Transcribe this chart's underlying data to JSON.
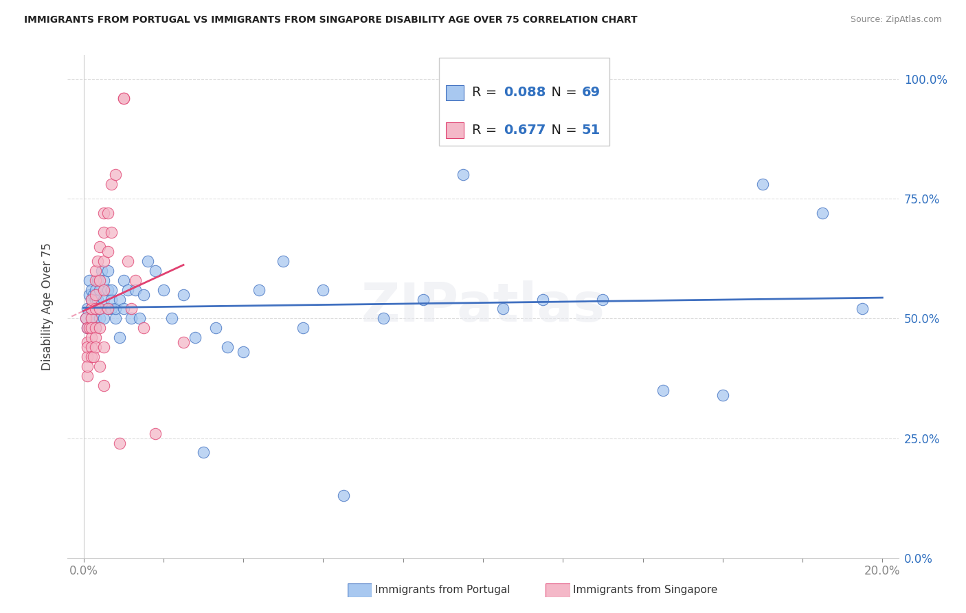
{
  "title": "IMMIGRANTS FROM PORTUGAL VS IMMIGRANTS FROM SINGAPORE DISABILITY AGE OVER 75 CORRELATION CHART",
  "source": "Source: ZipAtlas.com",
  "ylabel": "Disability Age Over 75",
  "blue_color": "#a8c8f0",
  "pink_color": "#f4b8c8",
  "blue_line_color": "#4070c0",
  "pink_line_color": "#e04070",
  "blue_r": "0.088",
  "blue_n": "69",
  "pink_r": "0.677",
  "pink_n": "51",
  "watermark": "ZIPatlas",
  "legend_label_blue": "Immigrants from Portugal",
  "legend_label_pink": "Immigrants from Singapore",
  "portugal_x": [
    0.0005,
    0.001,
    0.001,
    0.0015,
    0.0015,
    0.002,
    0.002,
    0.002,
    0.002,
    0.002,
    0.0025,
    0.0025,
    0.003,
    0.003,
    0.003,
    0.003,
    0.003,
    0.0035,
    0.0035,
    0.004,
    0.004,
    0.004,
    0.0045,
    0.005,
    0.005,
    0.005,
    0.006,
    0.006,
    0.006,
    0.007,
    0.007,
    0.007,
    0.008,
    0.008,
    0.009,
    0.009,
    0.01,
    0.01,
    0.011,
    0.012,
    0.013,
    0.014,
    0.015,
    0.016,
    0.018,
    0.02,
    0.022,
    0.025,
    0.028,
    0.03,
    0.033,
    0.036,
    0.04,
    0.044,
    0.05,
    0.055,
    0.06,
    0.065,
    0.075,
    0.085,
    0.095,
    0.105,
    0.115,
    0.13,
    0.145,
    0.16,
    0.17,
    0.185,
    0.195
  ],
  "portugal_y": [
    0.5,
    0.52,
    0.48,
    0.55,
    0.58,
    0.5,
    0.52,
    0.54,
    0.56,
    0.48,
    0.52,
    0.55,
    0.5,
    0.52,
    0.54,
    0.56,
    0.48,
    0.54,
    0.58,
    0.56,
    0.52,
    0.5,
    0.6,
    0.54,
    0.58,
    0.5,
    0.56,
    0.6,
    0.52,
    0.52,
    0.54,
    0.56,
    0.5,
    0.52,
    0.46,
    0.54,
    0.52,
    0.58,
    0.56,
    0.5,
    0.56,
    0.5,
    0.55,
    0.62,
    0.6,
    0.56,
    0.5,
    0.55,
    0.46,
    0.22,
    0.48,
    0.44,
    0.43,
    0.56,
    0.62,
    0.48,
    0.56,
    0.13,
    0.5,
    0.54,
    0.8,
    0.52,
    0.54,
    0.54,
    0.35,
    0.34,
    0.78,
    0.72,
    0.52
  ],
  "singapore_x": [
    0.0005,
    0.001,
    0.001,
    0.001,
    0.001,
    0.001,
    0.001,
    0.0015,
    0.002,
    0.002,
    0.002,
    0.002,
    0.002,
    0.002,
    0.002,
    0.002,
    0.0025,
    0.003,
    0.003,
    0.003,
    0.003,
    0.003,
    0.003,
    0.003,
    0.0035,
    0.004,
    0.004,
    0.004,
    0.004,
    0.004,
    0.005,
    0.005,
    0.005,
    0.005,
    0.005,
    0.005,
    0.006,
    0.006,
    0.006,
    0.007,
    0.007,
    0.008,
    0.009,
    0.01,
    0.01,
    0.011,
    0.012,
    0.013,
    0.015,
    0.018,
    0.025
  ],
  "singapore_y": [
    0.5,
    0.45,
    0.48,
    0.42,
    0.44,
    0.38,
    0.4,
    0.48,
    0.52,
    0.46,
    0.44,
    0.42,
    0.5,
    0.48,
    0.52,
    0.54,
    0.42,
    0.55,
    0.58,
    0.52,
    0.48,
    0.46,
    0.44,
    0.6,
    0.62,
    0.65,
    0.58,
    0.52,
    0.48,
    0.4,
    0.68,
    0.72,
    0.62,
    0.56,
    0.44,
    0.36,
    0.64,
    0.72,
    0.52,
    0.78,
    0.68,
    0.8,
    0.24,
    0.96,
    0.96,
    0.62,
    0.52,
    0.58,
    0.48,
    0.26,
    0.45
  ],
  "xmin": 0.0,
  "xmax": 0.2,
  "ymin": 0.0,
  "ymax": 1.05,
  "yticks": [
    0.0,
    0.25,
    0.5,
    0.75,
    1.0
  ],
  "yticklabels_right": [
    "0.0%",
    "25.0%",
    "50.0%",
    "75.0%",
    "100.0%"
  ],
  "xtick_first": "0.0%",
  "xtick_last": "20.0%"
}
